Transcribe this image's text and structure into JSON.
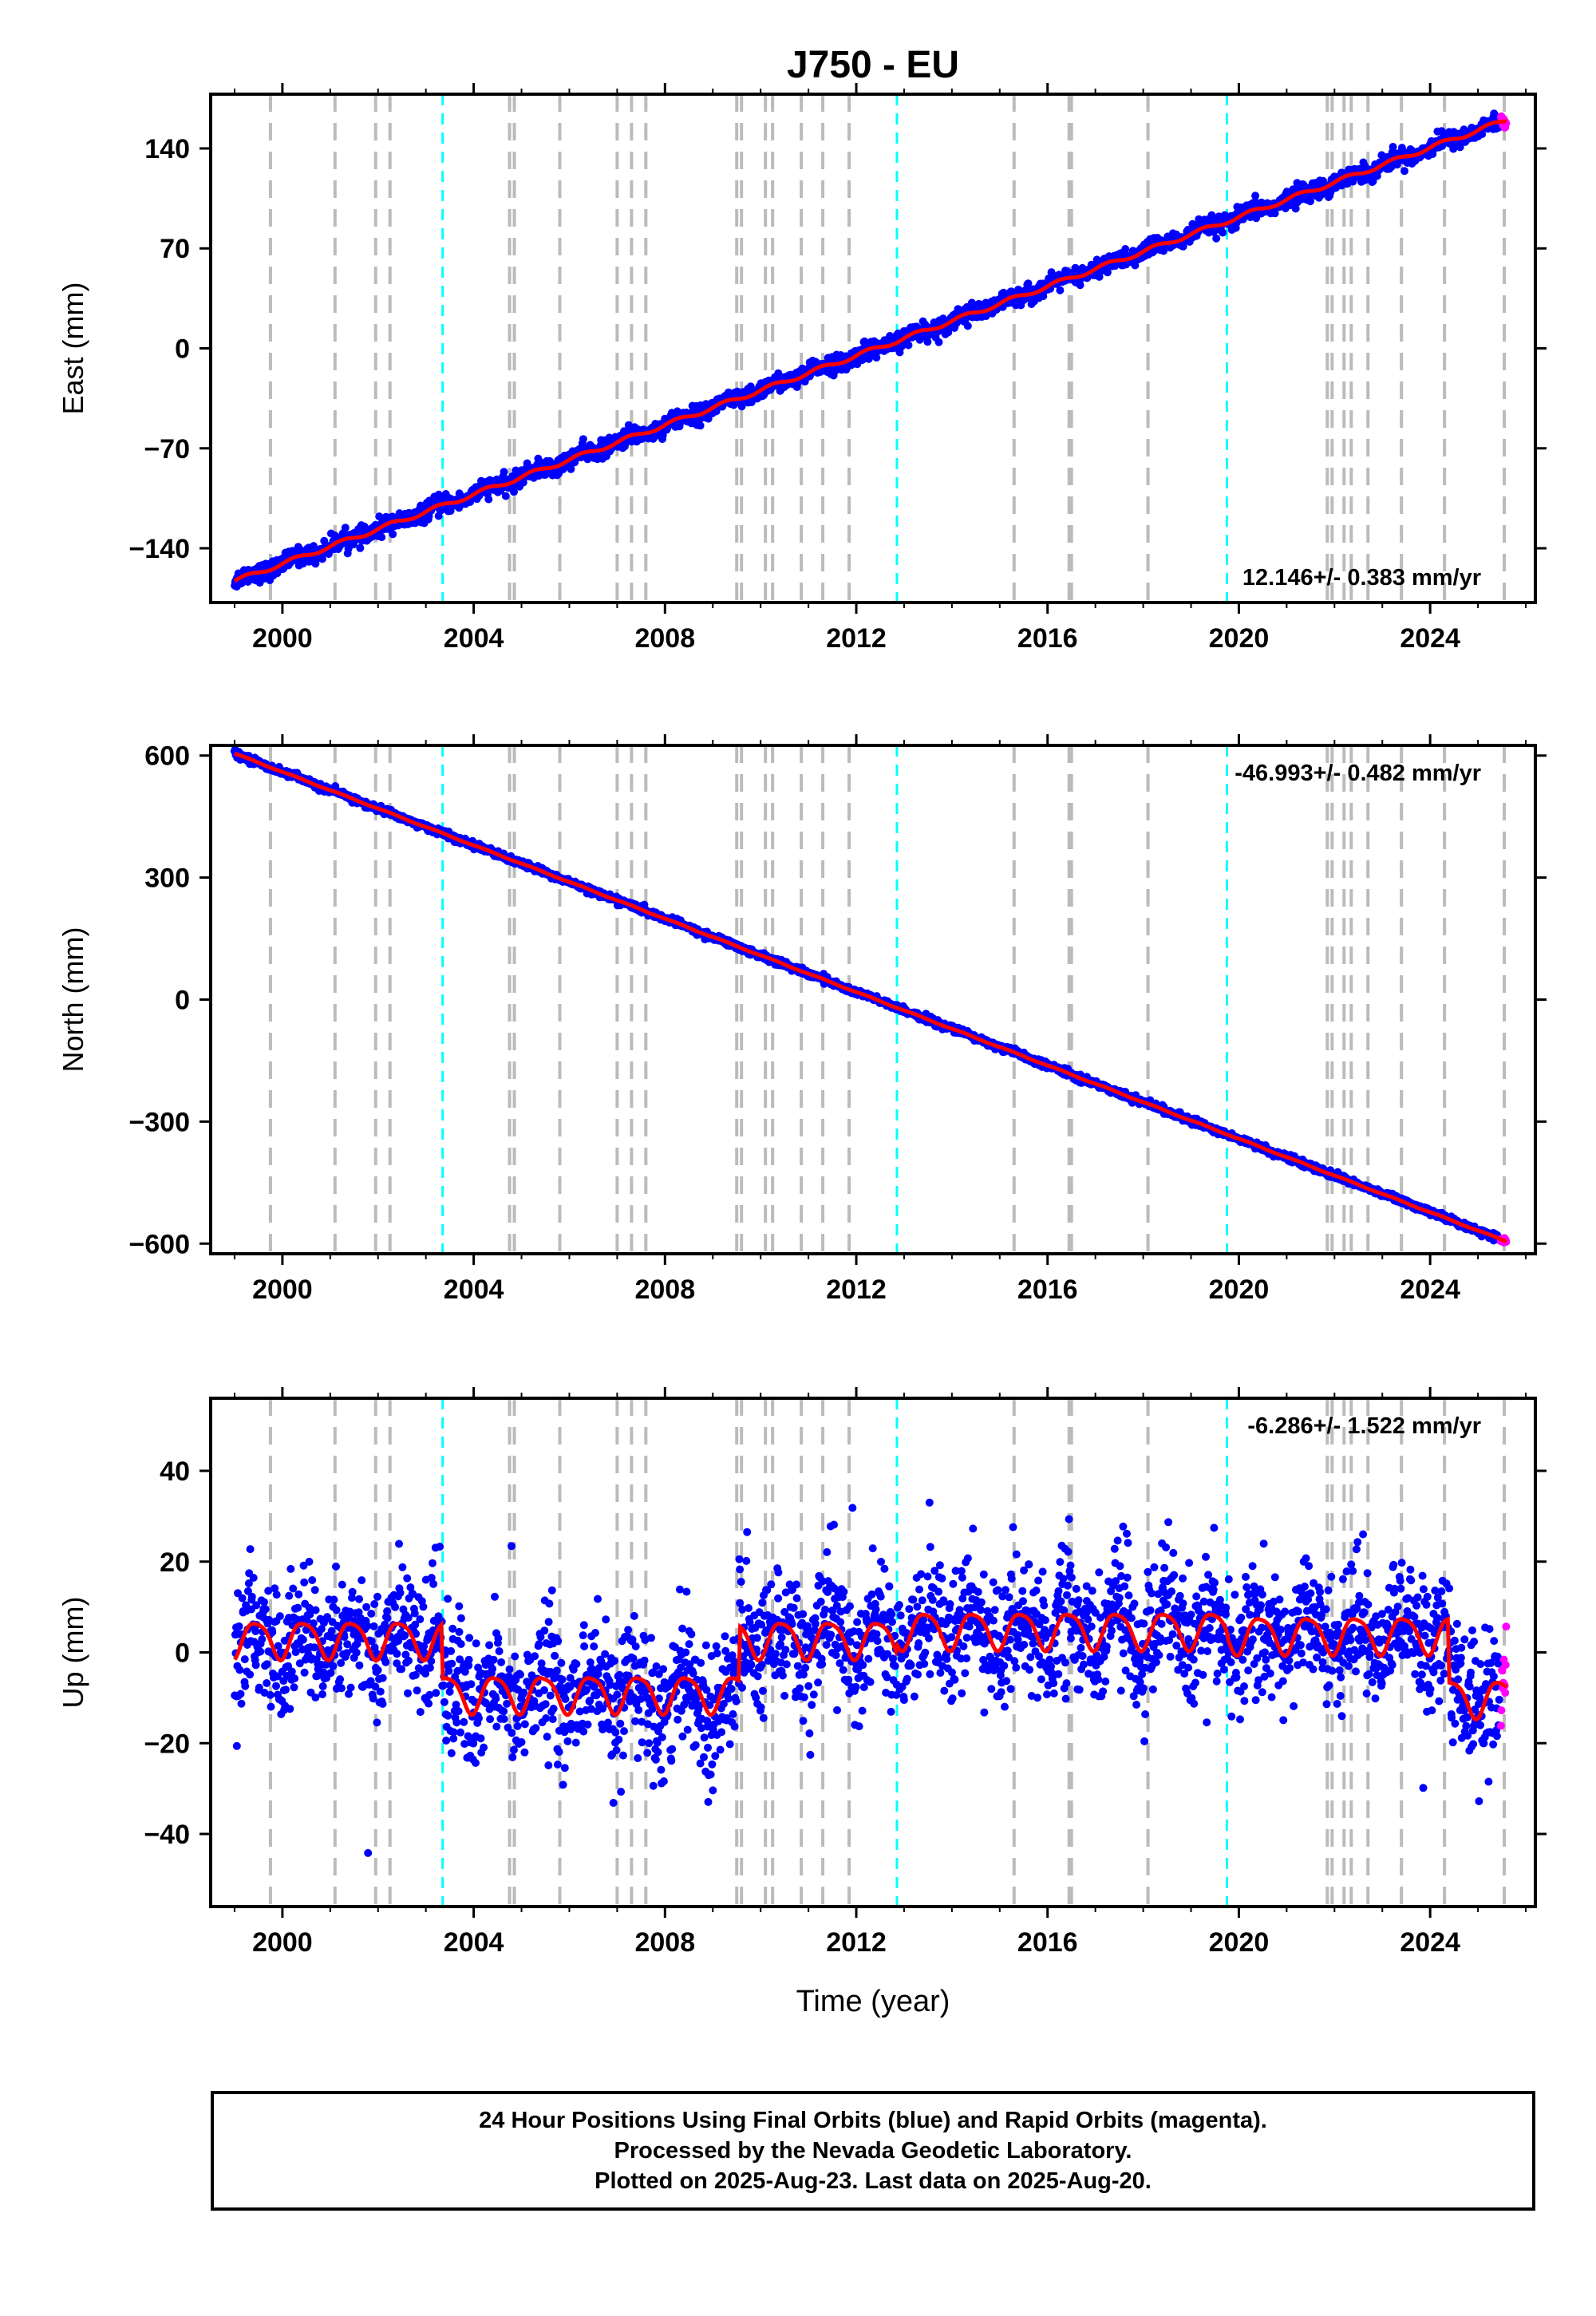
{
  "title": "J750 - EU",
  "xlabel": "Time (year)",
  "footer": {
    "line1": "24 Hour Positions Using Final Orbits (blue) and Rapid Orbits (magenta).",
    "line2": "Processed by the Nevada Geodetic Laboratory.",
    "line3": "Plotted on 2025-Aug-23. Last data on 2025-Aug-20."
  },
  "colors": {
    "final_orbits": "#0000ff",
    "rapid_orbits": "#ff00ff",
    "model": "#ff0000",
    "equipment_change": "#bbbbbb",
    "earthquake": "#00ffff"
  },
  "chart_data": [
    {
      "type": "scatter",
      "name": "east",
      "ylabel": "East (mm)",
      "rate_label": "12.146+/- 0.383 mm/yr",
      "rate_placement": "bottom-right",
      "xlim": [
        1998.5,
        2026.2
      ],
      "ylim": [
        -178,
        178
      ],
      "xticks": [
        "2000",
        "2004",
        "2008",
        "2012",
        "2016",
        "2020",
        "2024"
      ],
      "yticks": [
        "140",
        "70",
        "0",
        "−70",
        "−140"
      ],
      "ytick_values": [
        140,
        70,
        0,
        -70,
        -140
      ],
      "data_range": [
        1999.0,
        2025.6
      ],
      "rate": 12.146,
      "value_at_2012": 0.0,
      "scatter_mm": 3.0,
      "seasonal_mm": 1.5,
      "offsets": [
        [
          2001.9,
          3
        ],
        [
          2002.2,
          3
        ],
        [
          2003.35,
          3
        ],
        [
          2009.55,
          2
        ],
        [
          2021.9,
          4
        ]
      ],
      "start": -163,
      "end": 160,
      "grid": false
    },
    {
      "type": "scatter",
      "name": "north",
      "ylabel": "North (mm)",
      "rate_label": "-46.993+/- 0.482 mm/yr",
      "rate_placement": "top-right",
      "xlim": [
        1998.5,
        2026.2
      ],
      "ylim": [
        -625,
        625
      ],
      "xticks": [
        "2000",
        "2004",
        "2008",
        "2012",
        "2016",
        "2020",
        "2024"
      ],
      "yticks": [
        "600",
        "300",
        "0",
        "−300",
        "−600"
      ],
      "ytick_values": [
        600,
        300,
        0,
        -300,
        -600
      ],
      "data_range": [
        1999.0,
        2025.6
      ],
      "rate": -46.993,
      "value_at_2012": 25.0,
      "scatter_mm": 4.0,
      "seasonal_mm": 1.0,
      "offsets": [],
      "start": 605,
      "end": -595,
      "grid": false
    },
    {
      "type": "scatter",
      "name": "up",
      "ylabel": "Up (mm)",
      "rate_label": "-6.286+/- 1.522 mm/yr",
      "rate_placement": "top-right",
      "xlim": [
        1998.5,
        2026.2
      ],
      "ylim": [
        -56,
        56
      ],
      "xticks": [
        "2000",
        "2004",
        "2008",
        "2012",
        "2016",
        "2020",
        "2024"
      ],
      "yticks": [
        "40",
        "20",
        "0",
        "−20",
        "−40"
      ],
      "ytick_values": [
        40,
        20,
        0,
        -20,
        -40
      ],
      "data_range": [
        1999.0,
        2025.6
      ],
      "seasonal_mm": 4.0,
      "scatter_mm": 7.0,
      "segments": [
        {
          "from": 1999.0,
          "to": 2003.35,
          "level": 3
        },
        {
          "from": 2003.35,
          "to": 2009.55,
          "level": -9
        },
        {
          "from": 2009.55,
          "to": 2012.85,
          "level": 3
        },
        {
          "from": 2012.85,
          "to": 2019.75,
          "level": 5
        },
        {
          "from": 2019.75,
          "to": 2024.4,
          "level": 4
        },
        {
          "from": 2024.4,
          "to": 2025.6,
          "level": -10
        }
      ],
      "grid": false
    }
  ],
  "event_lines": {
    "equipment": [
      1999.75,
      2001.1,
      2001.95,
      2002.25,
      2004.75,
      2004.85,
      2005.8,
      2007.0,
      2007.3,
      2007.6,
      2009.5,
      2009.6,
      2010.1,
      2010.25,
      2010.85,
      2011.3,
      2011.85,
      2015.3,
      2016.45,
      2016.5,
      2018.1,
      2021.85,
      2021.95,
      2022.2,
      2022.35,
      2022.7,
      2023.4,
      2024.3,
      2025.55
    ],
    "earthquake": [
      2003.35,
      2012.85,
      2019.75
    ]
  }
}
